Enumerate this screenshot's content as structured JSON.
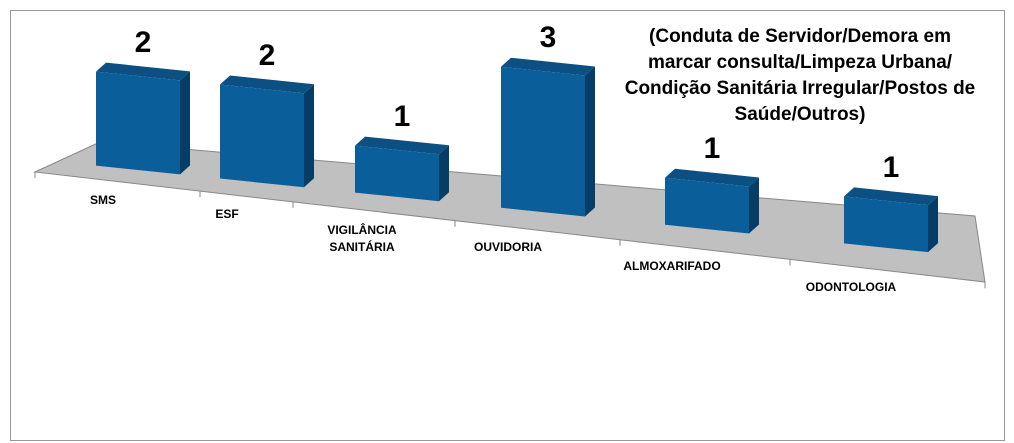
{
  "chart_data": {
    "type": "bar3d",
    "title": "(Conduta de Servidor/Demora em\nmarcar consulta/Limpeza Urbana/\nCondição Sanitária Irregular/Postos de\nSaúde/Outros)",
    "categories": [
      "SMS",
      "ESF",
      "VIGILÂNCIA\nSANITÁRIA",
      "OUVIDORIA",
      "ALMOXARIFADO",
      "ODONTOLOGIA"
    ],
    "values": [
      2,
      2,
      1,
      3,
      1,
      1
    ],
    "color": "#0a5f9b"
  }
}
